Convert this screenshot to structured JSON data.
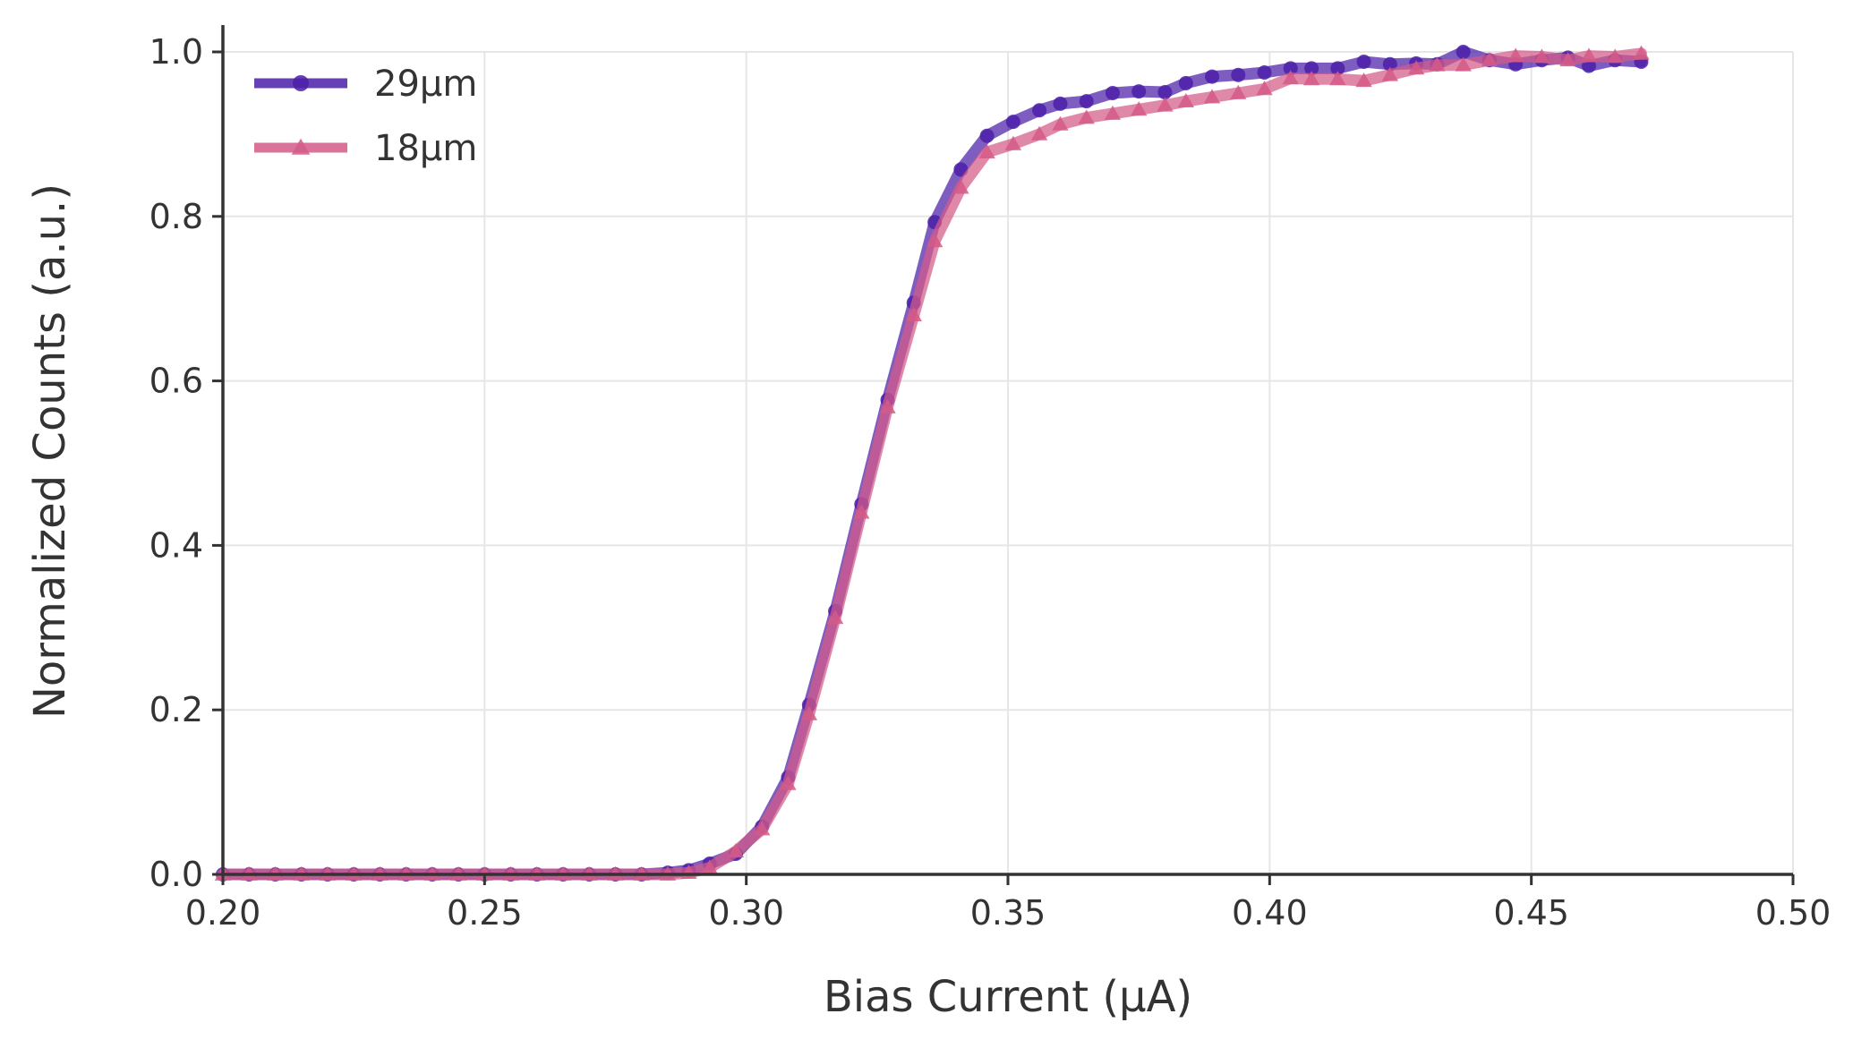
{
  "chart_data": {
    "type": "line",
    "xlabel": "Bias Current (μA)",
    "ylabel": "Normalized Counts (a.u.)",
    "xlim": [
      0.2,
      0.5
    ],
    "ylim": [
      0.0,
      1.0
    ],
    "x_ticks": [
      "0.20",
      "0.25",
      "0.30",
      "0.35",
      "0.40",
      "0.45",
      "0.50"
    ],
    "y_ticks": [
      "0.0",
      "0.2",
      "0.4",
      "0.6",
      "0.8",
      "1.0"
    ],
    "grid": true,
    "legend_position": "top-left",
    "series": [
      {
        "name": "29μm",
        "color": "#4b1fa8",
        "marker": "circle",
        "x": [
          0.2,
          0.205,
          0.21,
          0.215,
          0.22,
          0.225,
          0.23,
          0.235,
          0.24,
          0.245,
          0.25,
          0.255,
          0.26,
          0.265,
          0.27,
          0.275,
          0.28,
          0.285,
          0.289,
          0.293,
          0.298,
          0.303,
          0.308,
          0.312,
          0.317,
          0.322,
          0.327,
          0.332,
          0.336,
          0.341,
          0.346,
          0.351,
          0.356,
          0.36,
          0.365,
          0.37,
          0.375,
          0.38,
          0.384,
          0.389,
          0.394,
          0.399,
          0.404,
          0.408,
          0.413,
          0.418,
          0.423,
          0.428,
          0.432,
          0.437,
          0.442,
          0.447,
          0.452,
          0.457,
          0.461,
          0.466,
          0.471
        ],
        "y": [
          0.0,
          0.0,
          0.0,
          0.0,
          0.0,
          0.0,
          0.0,
          0.0,
          0.0,
          0.0,
          0.0,
          0.0,
          0.0,
          0.0,
          0.0,
          0.0,
          0.0,
          0.002,
          0.005,
          0.013,
          0.025,
          0.058,
          0.118,
          0.206,
          0.32,
          0.45,
          0.577,
          0.695,
          0.793,
          0.857,
          0.898,
          0.915,
          0.929,
          0.937,
          0.94,
          0.95,
          0.952,
          0.951,
          0.962,
          0.97,
          0.972,
          0.975,
          0.98,
          0.98,
          0.98,
          0.988,
          0.985,
          0.986,
          0.985,
          1.0,
          0.99,
          0.985,
          0.99,
          0.993,
          0.983,
          0.99,
          0.988
        ]
      },
      {
        "name": "18μm",
        "color": "#d45a87",
        "marker": "triangle",
        "x": [
          0.2,
          0.205,
          0.21,
          0.215,
          0.22,
          0.225,
          0.23,
          0.235,
          0.24,
          0.245,
          0.25,
          0.255,
          0.26,
          0.265,
          0.27,
          0.275,
          0.28,
          0.285,
          0.289,
          0.293,
          0.298,
          0.303,
          0.308,
          0.312,
          0.317,
          0.322,
          0.327,
          0.332,
          0.336,
          0.341,
          0.346,
          0.351,
          0.356,
          0.36,
          0.365,
          0.37,
          0.375,
          0.38,
          0.384,
          0.389,
          0.394,
          0.399,
          0.404,
          0.408,
          0.413,
          0.418,
          0.423,
          0.428,
          0.432,
          0.437,
          0.442,
          0.447,
          0.452,
          0.457,
          0.461,
          0.466,
          0.471
        ],
        "y": [
          0.0,
          0.0,
          0.0,
          0.0,
          0.0,
          0.0,
          0.0,
          0.0,
          0.0,
          0.0,
          0.0,
          0.0,
          0.0,
          0.0,
          0.0,
          0.0,
          0.0,
          0.0,
          0.002,
          0.008,
          0.028,
          0.055,
          0.11,
          0.195,
          0.312,
          0.44,
          0.568,
          0.68,
          0.77,
          0.835,
          0.878,
          0.888,
          0.9,
          0.912,
          0.92,
          0.925,
          0.93,
          0.935,
          0.94,
          0.945,
          0.95,
          0.955,
          0.968,
          0.967,
          0.967,
          0.965,
          0.972,
          0.98,
          0.984,
          0.984,
          0.99,
          0.995,
          0.994,
          0.99,
          0.995,
          0.994,
          0.998
        ]
      }
    ]
  }
}
